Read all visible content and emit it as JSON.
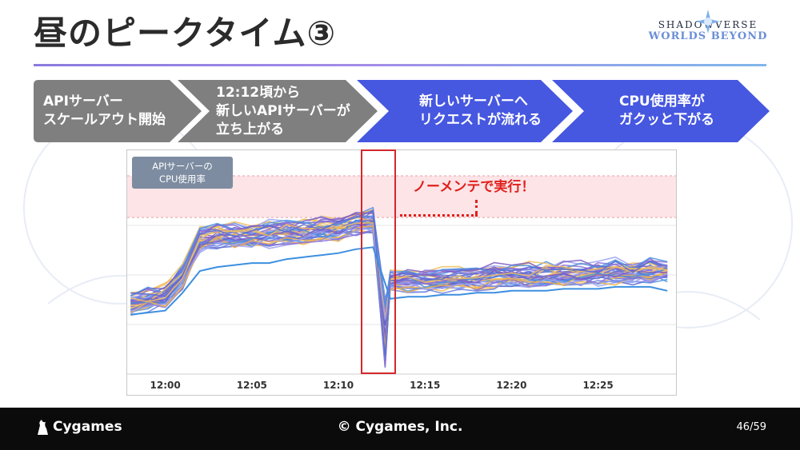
{
  "slide": {
    "title": "昼のピークタイム③",
    "logo_line1": "SHADOWVERSE",
    "logo_line2": "WORLDS BEYOND"
  },
  "steps": [
    {
      "label": "APIサーバー\nスケールアウト開始",
      "color": "#7f7f7f"
    },
    {
      "label": "12:12頃から\n新しいAPIサーバーが\n立ち上がる",
      "color": "#7f7f7f"
    },
    {
      "label": "新しいサーバーへ\nリクエストが流れる",
      "color": "#4657e0"
    },
    {
      "label": "CPU使用率が\nガクッと下がる",
      "color": "#4657e0"
    }
  ],
  "annotation": "ノーメンテで実行！",
  "chart_data": {
    "type": "line",
    "badge": "APIサーバーの\nCPU使用率",
    "xlabel": "",
    "ylabel": "",
    "x_ticks": [
      "12:00",
      "12:05",
      "12:10",
      "12:15",
      "12:20",
      "12:25"
    ],
    "x_range_minutes": [
      -2.2,
      29.5
    ],
    "time_axis": [
      "11:58",
      "11:59",
      "12:00",
      "12:01",
      "12:02",
      "12:03",
      "12:04",
      "12:05",
      "12:06",
      "12:07",
      "12:08",
      "12:09",
      "12:10",
      "12:11",
      "12:12",
      "12:13",
      "12:14",
      "12:15",
      "12:16",
      "12:17",
      "12:18",
      "12:19",
      "12:20",
      "12:21",
      "12:22",
      "12:23",
      "12:24",
      "12:25",
      "12:26",
      "12:27",
      "12:28",
      "12:29"
    ],
    "y_unit": "relative",
    "threshold_band": [
      0.79,
      1.0
    ],
    "bundle": {
      "series_count": 40,
      "colors": [
        "#6b7fe0",
        "#8a6fd8",
        "#f2b54a",
        "#4a90e2",
        "#7c5cc4",
        "#f0c060",
        "#9aa0f0",
        "#5c6bd0"
      ],
      "center": [
        0.36,
        0.38,
        0.4,
        0.5,
        0.68,
        0.7,
        0.7,
        0.7,
        0.71,
        0.72,
        0.72,
        0.73,
        0.74,
        0.76,
        0.78,
        0.47,
        0.48,
        0.48,
        0.48,
        0.49,
        0.49,
        0.5,
        0.5,
        0.5,
        0.51,
        0.51,
        0.51,
        0.52,
        0.52,
        0.52,
        0.53,
        0.52
      ],
      "spread": 0.1,
      "dip_at_index": 14.7,
      "dip_min": 0.03
    },
    "lowest_series": {
      "name": "",
      "color": "#3d8fe0",
      "values": [
        0.3,
        0.31,
        0.32,
        0.41,
        0.52,
        0.54,
        0.55,
        0.56,
        0.56,
        0.58,
        0.59,
        0.6,
        0.61,
        0.63,
        0.64,
        0.38,
        0.39,
        0.39,
        0.4,
        0.4,
        0.41,
        0.41,
        0.42,
        0.42,
        0.42,
        0.43,
        0.43,
        0.43,
        0.44,
        0.44,
        0.44,
        0.42
      ]
    }
  },
  "footer": {
    "brand": "Cygames",
    "copyright": "© Cygames, Inc.",
    "page": "46/59"
  }
}
